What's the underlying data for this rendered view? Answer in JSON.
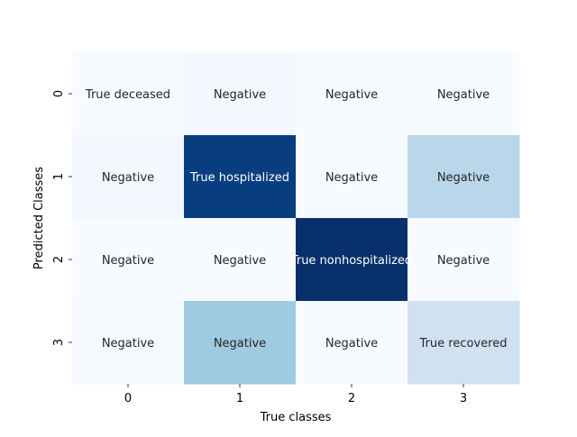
{
  "chart_data": {
    "type": "heatmap",
    "title": "",
    "xlabel": "True classes",
    "ylabel": "Predicted Classes",
    "x_categories": [
      "0",
      "1",
      "2",
      "3"
    ],
    "y_categories": [
      "0",
      "1",
      "2",
      "3"
    ],
    "colorbar": false,
    "colormap": "Blues",
    "cell_labels": [
      [
        "True deceased",
        "Negative",
        "Negative",
        "Negative"
      ],
      [
        "Negative",
        "True hospitalized",
        "Negative",
        "Negative"
      ],
      [
        "Negative",
        "Negative",
        "True nonhospitalized",
        "Negative"
      ],
      [
        "Negative",
        "Negative",
        "Negative",
        "True recovered"
      ]
    ],
    "cell_colors": [
      [
        "#f7fbff",
        "#f3f8fe",
        "#f7fbff",
        "#f7fbff"
      ],
      [
        "#f3f8fe",
        "#083d7f",
        "#f7fbff",
        "#b9d6ea"
      ],
      [
        "#f7fbff",
        "#f7fbff",
        "#08306b",
        "#f7fbff"
      ],
      [
        "#f5f9fe",
        "#9fcae1",
        "#f7fbff",
        "#d0e1f2"
      ]
    ],
    "cell_text_colors": [
      [
        "#262626",
        "#262626",
        "#262626",
        "#262626"
      ],
      [
        "#262626",
        "#ffffff",
        "#262626",
        "#262626"
      ],
      [
        "#262626",
        "#262626",
        "#ffffff",
        "#262626"
      ],
      [
        "#262626",
        "#262626",
        "#262626",
        "#262626"
      ]
    ]
  }
}
